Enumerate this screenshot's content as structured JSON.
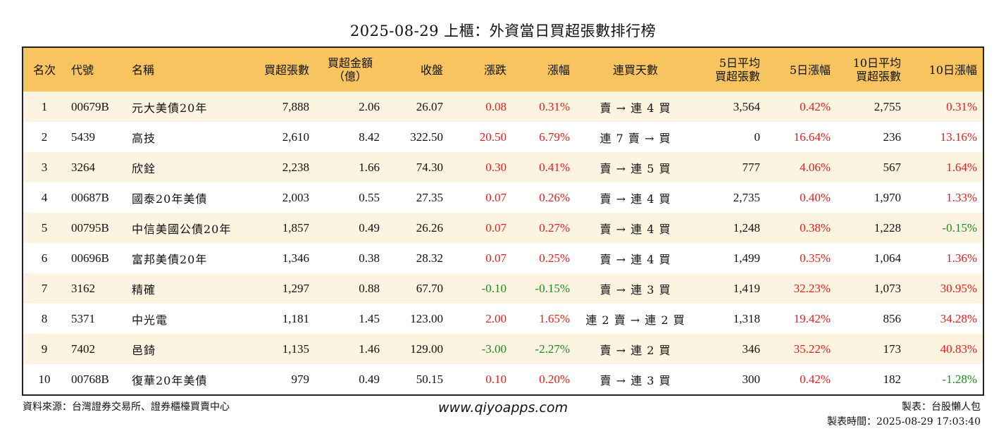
{
  "title": "2025-08-29 上櫃：外資當日買超張數排行榜",
  "headers": {
    "rank": "名次",
    "code": "代號",
    "name": "名稱",
    "buy_lots": "買超張數",
    "buy_amount_l1": "買超金額",
    "buy_amount_l2": "（億）",
    "close": "收盤",
    "change": "漲跌",
    "change_pct": "漲幅",
    "streak": "連買天數",
    "avg5_l1": "5日平均",
    "avg5_l2": "買超張數",
    "pct5": "5日漲幅",
    "avg10_l1": "10日平均",
    "avg10_l2": "買超張數",
    "pct10": "10日漲幅"
  },
  "rows": [
    {
      "rank": "1",
      "code": "00679B",
      "name": "元大美債20年",
      "buy_lots": "7,888",
      "amount": "2.06",
      "close": "26.07",
      "change": "0.08",
      "change_pct": "0.31%",
      "streak": "賣 → 連 4 買",
      "avg5": "3,564",
      "pct5": "0.42%",
      "avg10": "2,755",
      "pct10": "0.31%"
    },
    {
      "rank": "2",
      "code": "5439",
      "name": "高技",
      "buy_lots": "2,610",
      "amount": "8.42",
      "close": "322.50",
      "change": "20.50",
      "change_pct": "6.79%",
      "streak": "連 7 賣 → 買",
      "avg5": "0",
      "pct5": "16.64%",
      "avg10": "236",
      "pct10": "13.16%"
    },
    {
      "rank": "3",
      "code": "3264",
      "name": "欣銓",
      "buy_lots": "2,238",
      "amount": "1.66",
      "close": "74.30",
      "change": "0.30",
      "change_pct": "0.41%",
      "streak": "賣 → 連 5 買",
      "avg5": "777",
      "pct5": "4.06%",
      "avg10": "567",
      "pct10": "1.64%"
    },
    {
      "rank": "4",
      "code": "00687B",
      "name": "國泰20年美債",
      "buy_lots": "2,003",
      "amount": "0.55",
      "close": "27.35",
      "change": "0.07",
      "change_pct": "0.26%",
      "streak": "賣 → 連 4 買",
      "avg5": "2,735",
      "pct5": "0.40%",
      "avg10": "1,970",
      "pct10": "1.33%"
    },
    {
      "rank": "5",
      "code": "00795B",
      "name": "中信美國公債20年",
      "buy_lots": "1,857",
      "amount": "0.49",
      "close": "26.26",
      "change": "0.07",
      "change_pct": "0.27%",
      "streak": "賣 → 連 4 買",
      "avg5": "1,248",
      "pct5": "0.38%",
      "avg10": "1,228",
      "pct10": "-0.15%"
    },
    {
      "rank": "6",
      "code": "00696B",
      "name": "富邦美債20年",
      "buy_lots": "1,346",
      "amount": "0.38",
      "close": "28.32",
      "change": "0.07",
      "change_pct": "0.25%",
      "streak": "賣 → 連 4 買",
      "avg5": "1,499",
      "pct5": "0.35%",
      "avg10": "1,064",
      "pct10": "1.36%"
    },
    {
      "rank": "7",
      "code": "3162",
      "name": "精確",
      "buy_lots": "1,297",
      "amount": "0.88",
      "close": "67.70",
      "change": "-0.10",
      "change_pct": "-0.15%",
      "streak": "賣 → 連 3 買",
      "avg5": "1,419",
      "pct5": "32.23%",
      "avg10": "1,073",
      "pct10": "30.95%"
    },
    {
      "rank": "8",
      "code": "5371",
      "name": "中光電",
      "buy_lots": "1,181",
      "amount": "1.45",
      "close": "123.00",
      "change": "2.00",
      "change_pct": "1.65%",
      "streak": "連 2 賣 → 連 2 買",
      "avg5": "1,318",
      "pct5": "19.42%",
      "avg10": "856",
      "pct10": "34.28%"
    },
    {
      "rank": "9",
      "code": "7402",
      "name": "邑錡",
      "buy_lots": "1,135",
      "amount": "1.46",
      "close": "129.00",
      "change": "-3.00",
      "change_pct": "-2.27%",
      "streak": "賣 → 連 2 買",
      "avg5": "346",
      "pct5": "35.22%",
      "avg10": "173",
      "pct10": "40.83%"
    },
    {
      "rank": "10",
      "code": "00768B",
      "name": "復華20年美債",
      "buy_lots": "979",
      "amount": "0.49",
      "close": "50.15",
      "change": "0.10",
      "change_pct": "0.20%",
      "streak": "賣 → 連 3 買",
      "avg5": "300",
      "pct5": "0.42%",
      "avg10": "182",
      "pct10": "-1.28%"
    }
  ],
  "colors": {
    "up": "#e0211c",
    "down": "#1f8a1f",
    "header_bg": "#f8c460",
    "stripe": "#fdf3e1"
  },
  "footer": {
    "source": "資料來源：台灣證券交易所、證券櫃檯買賣中心",
    "site": "www.qiyoapps.com",
    "maker": "製表：台股懶人包",
    "made_time": "製表時間：2025-08-29 17:03:40"
  }
}
